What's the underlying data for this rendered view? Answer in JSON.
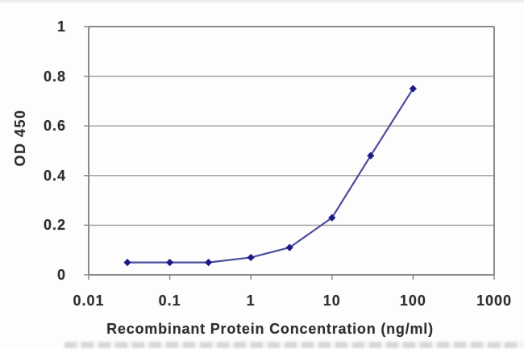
{
  "colors": {
    "grid": "#9a9a9a",
    "frame": "#8a8a8a",
    "text": "#2e2e2e",
    "line": "#4c4c9e",
    "marker": "#1c1c86",
    "background": "#fdfdfd"
  },
  "chart_data": {
    "type": "line",
    "title": "",
    "xlabel": "Recombinant Protein Concentration (ng/ml)",
    "ylabel": "OD 450",
    "x_scale": "log",
    "y_scale": "linear",
    "xlim": [
      0.01,
      1000
    ],
    "ylim": [
      0,
      1
    ],
    "x_ticks": [
      "0.01",
      "0.1",
      "1",
      "10",
      "100",
      "1000"
    ],
    "x_tick_values": [
      0.01,
      0.1,
      1,
      10,
      100,
      1000
    ],
    "y_ticks": [
      "0",
      "0.2",
      "0.4",
      "0.6",
      "0.8",
      "1"
    ],
    "y_tick_values": [
      0,
      0.2,
      0.4,
      0.6,
      0.8,
      1
    ],
    "grid": "horizontal gridlines at every y tick",
    "legend_position": "none",
    "series": [
      {
        "name": "OD 450",
        "marker": "diamond",
        "line_color": "#4c4c9e",
        "marker_color": "#1c1c86",
        "x": [
          0.03,
          0.1,
          0.3,
          1,
          3,
          10,
          30,
          100
        ],
        "y": [
          0.05,
          0.05,
          0.05,
          0.07,
          0.11,
          0.23,
          0.48,
          0.75
        ]
      }
    ]
  }
}
